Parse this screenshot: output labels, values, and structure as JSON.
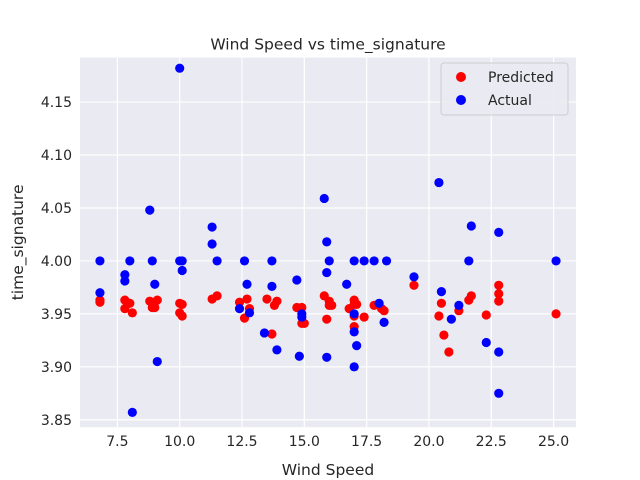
{
  "chart_data": {
    "type": "scatter",
    "title": "Wind Speed vs time_signature",
    "xlabel": "Wind Speed",
    "ylabel": "time_signature",
    "xlim": [
      6.0,
      25.9
    ],
    "ylim": [
      3.843,
      4.192
    ],
    "x_ticks": [
      7.5,
      10.0,
      12.5,
      15.0,
      17.5,
      20.0,
      22.5,
      25.0
    ],
    "x_tick_labels": [
      "7.5",
      "10.0",
      "12.5",
      "15.0",
      "17.5",
      "20.0",
      "22.5",
      "25.0"
    ],
    "y_ticks": [
      3.85,
      3.9,
      3.95,
      4.0,
      4.05,
      4.1,
      4.15
    ],
    "y_tick_labels": [
      "3.85",
      "3.90",
      "3.95",
      "4.00",
      "4.05",
      "4.10",
      "4.15"
    ],
    "grid": true,
    "legend_position": "top-right",
    "series": [
      {
        "name": "Predicted",
        "color": "#ff0000",
        "points": [
          [
            6.8,
            3.963
          ],
          [
            6.8,
            3.961
          ],
          [
            7.8,
            3.963
          ],
          [
            7.8,
            3.955
          ],
          [
            8.0,
            3.96
          ],
          [
            8.1,
            3.951
          ],
          [
            8.8,
            3.962
          ],
          [
            8.9,
            3.956
          ],
          [
            9.0,
            3.956
          ],
          [
            9.1,
            3.963
          ],
          [
            10.0,
            3.96
          ],
          [
            10.0,
            3.951
          ],
          [
            10.1,
            3.948
          ],
          [
            10.1,
            3.959
          ],
          [
            11.3,
            3.964
          ],
          [
            11.5,
            3.967
          ],
          [
            12.4,
            3.961
          ],
          [
            12.6,
            3.946
          ],
          [
            12.7,
            3.964
          ],
          [
            12.8,
            3.955
          ],
          [
            13.5,
            3.964
          ],
          [
            13.7,
            3.931
          ],
          [
            13.8,
            3.958
          ],
          [
            13.9,
            3.962
          ],
          [
            14.7,
            3.956
          ],
          [
            14.9,
            3.956
          ],
          [
            14.9,
            3.941
          ],
          [
            15.0,
            3.941
          ],
          [
            15.8,
            3.967
          ],
          [
            15.9,
            3.945
          ],
          [
            16.0,
            3.962
          ],
          [
            16.0,
            3.958
          ],
          [
            16.1,
            3.958
          ],
          [
            16.8,
            3.955
          ],
          [
            17.0,
            3.963
          ],
          [
            17.0,
            3.959
          ],
          [
            17.0,
            3.948
          ],
          [
            17.0,
            3.938
          ],
          [
            17.1,
            3.959
          ],
          [
            17.4,
            3.947
          ],
          [
            17.8,
            3.958
          ],
          [
            18.1,
            3.955
          ],
          [
            18.2,
            3.953
          ],
          [
            19.4,
            3.977
          ],
          [
            20.4,
            3.948
          ],
          [
            20.5,
            3.96
          ],
          [
            20.6,
            3.93
          ],
          [
            20.8,
            3.914
          ],
          [
            21.2,
            3.953
          ],
          [
            21.6,
            3.963
          ],
          [
            21.7,
            3.967
          ],
          [
            22.3,
            3.949
          ],
          [
            22.8,
            3.977
          ],
          [
            22.8,
            3.969
          ],
          [
            22.8,
            3.962
          ],
          [
            25.1,
            3.95
          ]
        ]
      },
      {
        "name": "Actual",
        "color": "#0000ff",
        "points": [
          [
            6.8,
            4.0
          ],
          [
            6.8,
            3.97
          ],
          [
            7.8,
            3.987
          ],
          [
            7.8,
            3.981
          ],
          [
            8.0,
            4.0
          ],
          [
            8.1,
            3.857
          ],
          [
            8.8,
            4.048
          ],
          [
            8.9,
            4.0
          ],
          [
            9.0,
            3.978
          ],
          [
            9.1,
            3.905
          ],
          [
            10.0,
            4.182
          ],
          [
            10.0,
            4.0
          ],
          [
            10.1,
            4.0
          ],
          [
            10.1,
            3.991
          ],
          [
            11.3,
            4.032
          ],
          [
            11.3,
            4.016
          ],
          [
            11.5,
            4.0
          ],
          [
            12.4,
            3.955
          ],
          [
            12.6,
            4.0
          ],
          [
            12.7,
            3.978
          ],
          [
            12.8,
            3.951
          ],
          [
            13.4,
            3.932
          ],
          [
            13.7,
            4.0
          ],
          [
            13.7,
            3.976
          ],
          [
            13.9,
            3.916
          ],
          [
            14.7,
            3.982
          ],
          [
            14.8,
            3.91
          ],
          [
            14.9,
            3.95
          ],
          [
            14.9,
            3.947
          ],
          [
            15.8,
            4.059
          ],
          [
            15.9,
            4.018
          ],
          [
            15.9,
            3.989
          ],
          [
            16.0,
            4.0
          ],
          [
            15.9,
            3.909
          ],
          [
            16.7,
            3.978
          ],
          [
            17.0,
            4.0
          ],
          [
            17.0,
            3.95
          ],
          [
            17.0,
            3.933
          ],
          [
            17.0,
            3.9
          ],
          [
            17.1,
            3.92
          ],
          [
            17.4,
            4.0
          ],
          [
            17.8,
            4.0
          ],
          [
            18.0,
            3.96
          ],
          [
            18.2,
            3.942
          ],
          [
            18.3,
            4.0
          ],
          [
            19.4,
            3.985
          ],
          [
            20.4,
            4.074
          ],
          [
            20.5,
            3.971
          ],
          [
            20.9,
            3.945
          ],
          [
            21.2,
            3.958
          ],
          [
            21.6,
            4.0
          ],
          [
            21.7,
            4.033
          ],
          [
            22.3,
            3.923
          ],
          [
            22.8,
            4.027
          ],
          [
            22.8,
            3.914
          ],
          [
            22.8,
            3.875
          ],
          [
            25.1,
            4.0
          ]
        ]
      }
    ]
  }
}
